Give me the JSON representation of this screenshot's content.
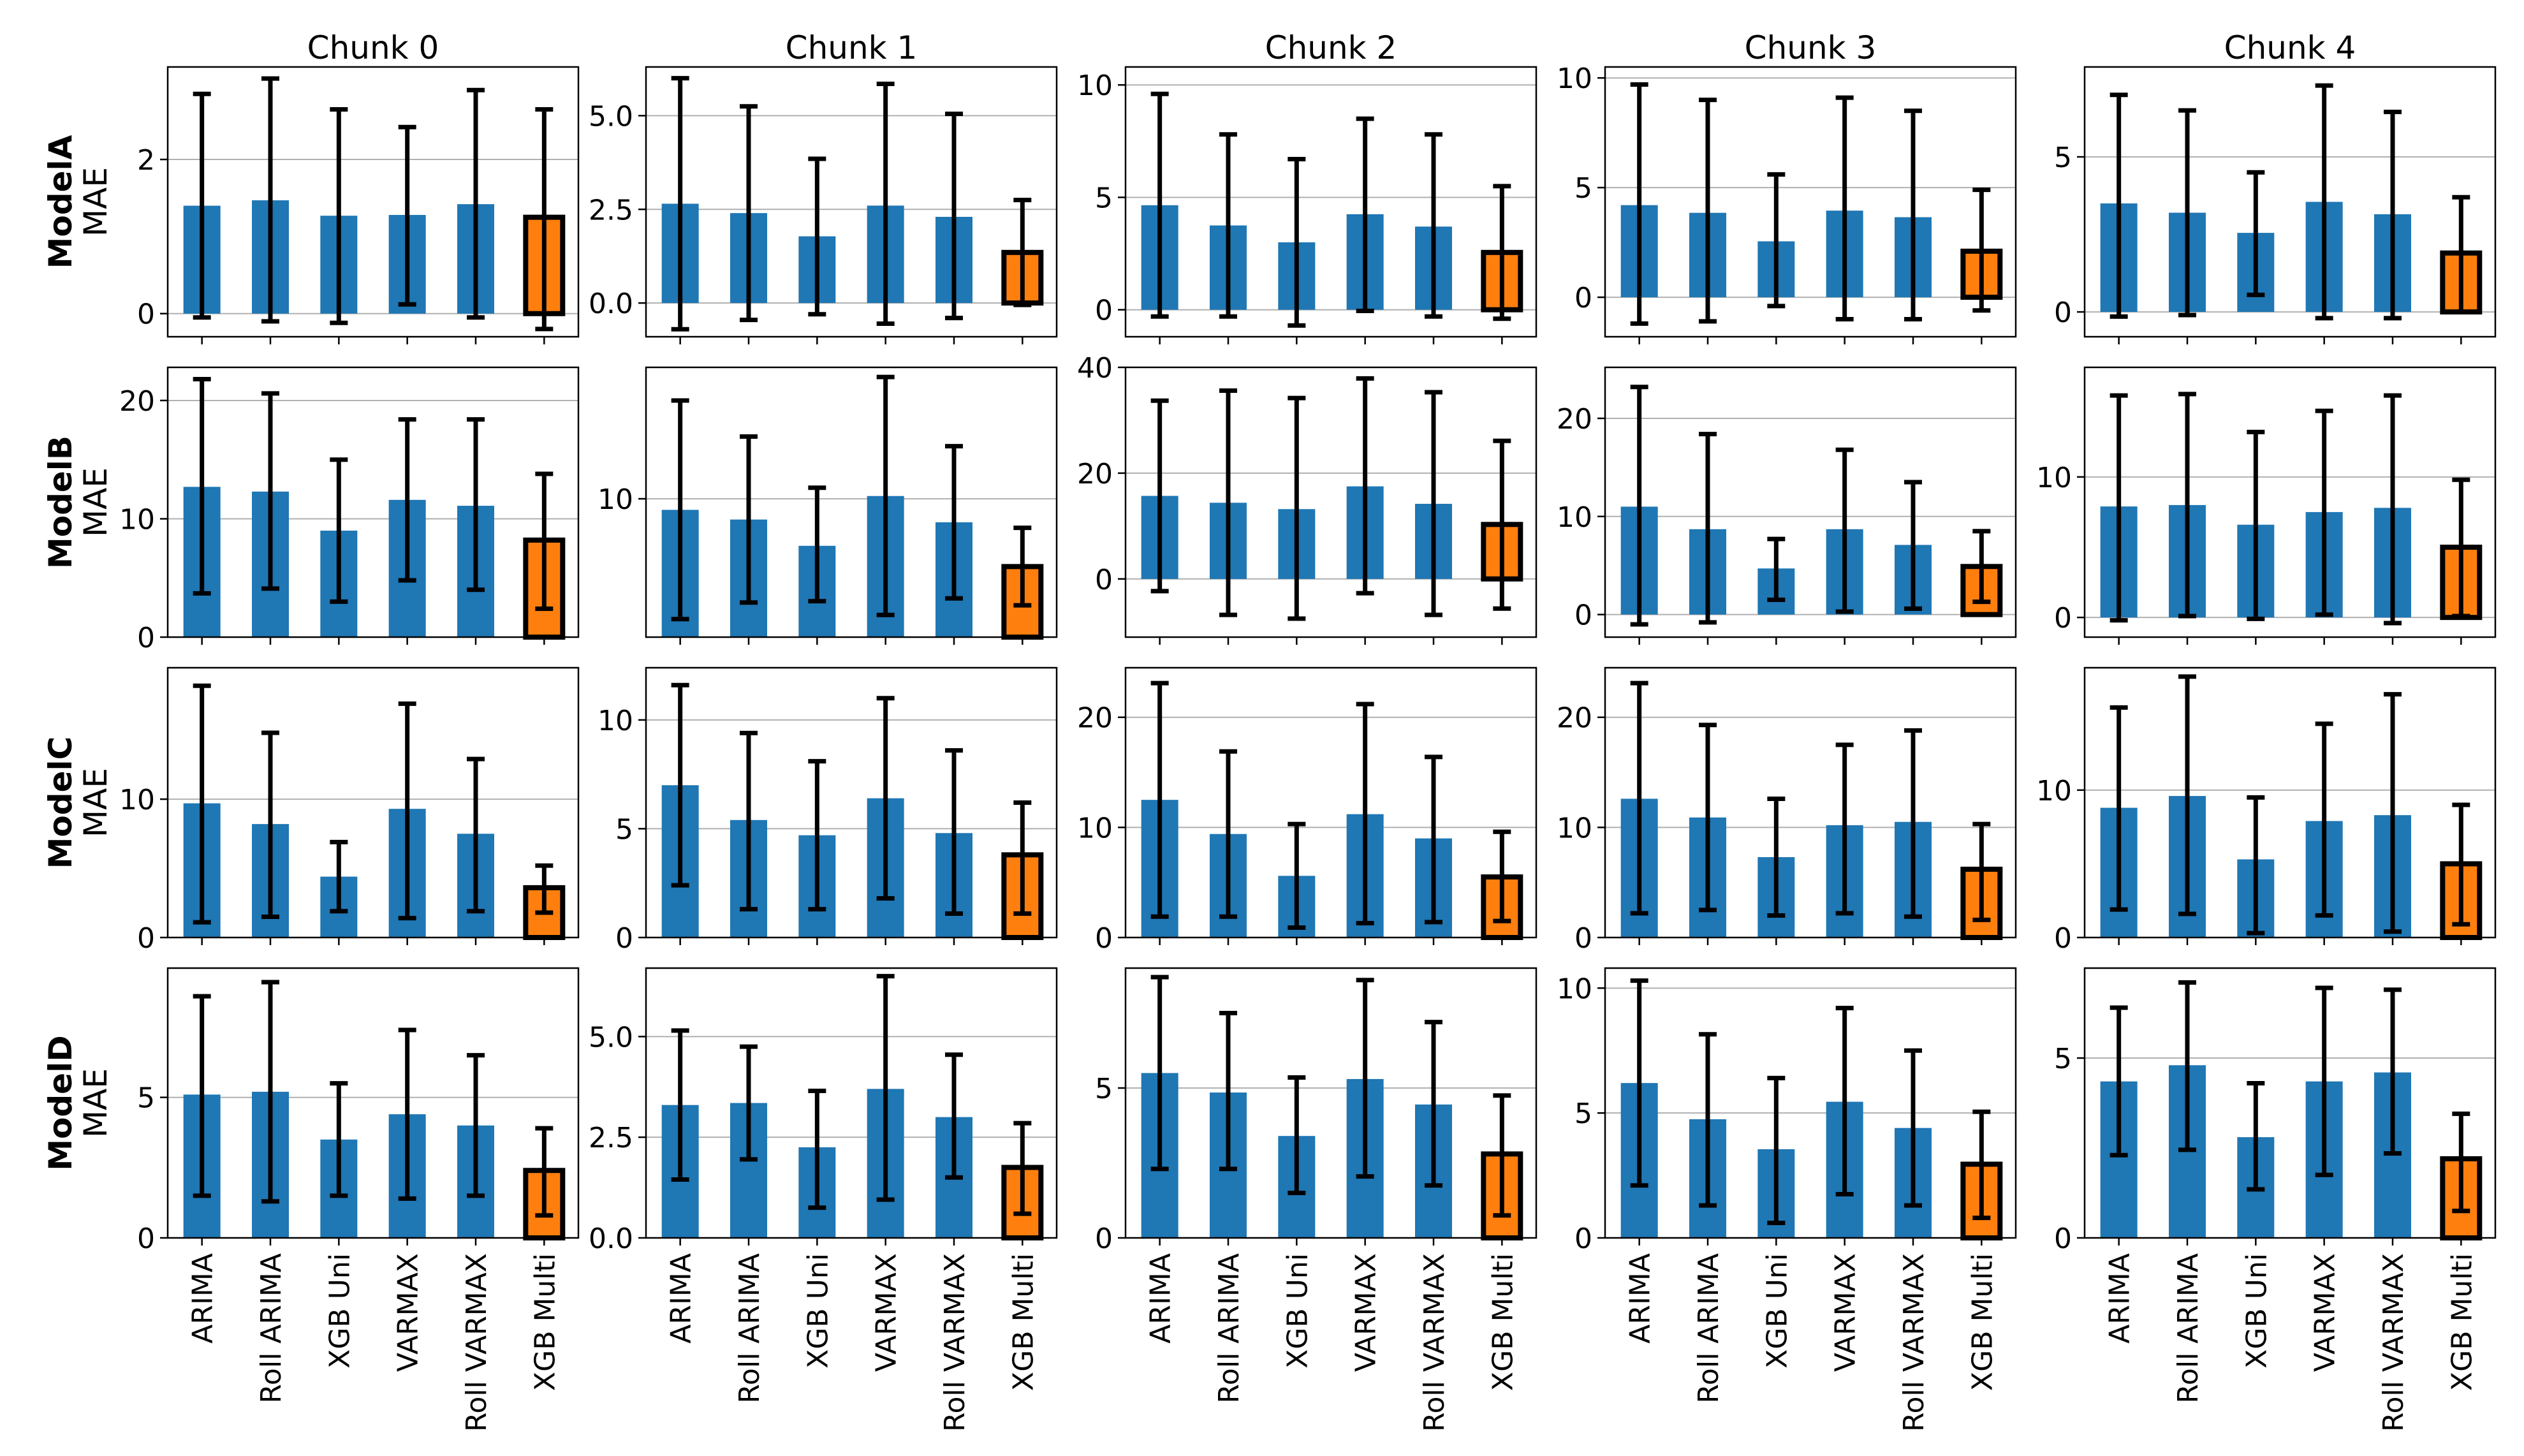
{
  "figure": {
    "columns": [
      "Chunk 0",
      "Chunk 1",
      "Chunk 2",
      "Chunk 3",
      "Chunk 4"
    ],
    "rows": [
      {
        "model": "ModelA",
        "metric": "MAE"
      },
      {
        "model": "ModelB",
        "metric": "MAE"
      },
      {
        "model": "ModelC",
        "metric": "MAE"
      },
      {
        "model": "ModelD",
        "metric": "MAE"
      }
    ]
  },
  "colors": {
    "base": "#1f77b4",
    "highlight": "#ff7f0e",
    "error": "#000000",
    "grid": "#b0b0b0"
  },
  "chart_data": {
    "type": "bar",
    "categories": [
      "ARIMA",
      "Roll ARIMA",
      "XGB Uni",
      "VARMAX",
      "Roll VARMAX",
      "XGB Multi"
    ],
    "highlight_category": "XGB Multi",
    "error_bars": "value = mean, err = [low, high]",
    "grid": "horizontal",
    "panels": [
      {
        "row": "ModelA",
        "column": "Chunk 0",
        "ylim": [
          -0.3,
          3.2
        ],
        "yticks": [
          0,
          2
        ],
        "ytick_labels": [
          "0",
          "2"
        ],
        "values": [
          1.4,
          1.47,
          1.27,
          1.28,
          1.42,
          1.25
        ],
        "err": [
          [
            -0.05,
            2.85
          ],
          [
            -0.1,
            3.05
          ],
          [
            -0.12,
            2.65
          ],
          [
            0.12,
            2.42
          ],
          [
            -0.05,
            2.9
          ],
          [
            -0.2,
            2.65
          ]
        ]
      },
      {
        "row": "ModelA",
        "column": "Chunk 1",
        "ylim": [
          -0.9,
          6.3
        ],
        "yticks": [
          0,
          2.5,
          5
        ],
        "ytick_labels": [
          "0.0",
          "2.5",
          "5.0"
        ],
        "values": [
          2.65,
          2.4,
          1.78,
          2.6,
          2.3,
          1.35
        ],
        "err": [
          [
            -0.7,
            6.0
          ],
          [
            -0.45,
            5.25
          ],
          [
            -0.3,
            3.85
          ],
          [
            -0.55,
            5.85
          ],
          [
            -0.4,
            5.05
          ],
          [
            -0.05,
            2.75
          ]
        ]
      },
      {
        "row": "ModelA",
        "column": "Chunk 2",
        "ylim": [
          -1.2,
          10.8
        ],
        "yticks": [
          0,
          5,
          10
        ],
        "ytick_labels": [
          "0",
          "5",
          "10"
        ],
        "values": [
          4.65,
          3.75,
          3.0,
          4.25,
          3.7,
          2.55
        ],
        "err": [
          [
            -0.3,
            9.6
          ],
          [
            -0.3,
            7.8
          ],
          [
            -0.7,
            6.7
          ],
          [
            -0.05,
            8.5
          ],
          [
            -0.3,
            7.8
          ],
          [
            -0.4,
            5.5
          ]
        ]
      },
      {
        "row": "ModelA",
        "column": "Chunk 3",
        "ylim": [
          -1.8,
          10.5
        ],
        "yticks": [
          0,
          5,
          10
        ],
        "ytick_labels": [
          "0",
          "5",
          "10"
        ],
        "values": [
          4.2,
          3.85,
          2.55,
          3.95,
          3.65,
          2.1
        ],
        "err": [
          [
            -1.2,
            9.7
          ],
          [
            -1.1,
            9.0
          ],
          [
            -0.4,
            5.6
          ],
          [
            -1.0,
            9.1
          ],
          [
            -1.0,
            8.5
          ],
          [
            -0.6,
            4.9
          ]
        ]
      },
      {
        "row": "ModelA",
        "column": "Chunk 4",
        "ylim": [
          -0.8,
          7.9
        ],
        "yticks": [
          0,
          5
        ],
        "ytick_labels": [
          "0",
          "5"
        ],
        "values": [
          3.5,
          3.2,
          2.55,
          3.55,
          3.15,
          1.9
        ],
        "err": [
          [
            -0.15,
            7.0
          ],
          [
            -0.1,
            6.5
          ],
          [
            0.55,
            4.5
          ],
          [
            -0.2,
            7.3
          ],
          [
            -0.2,
            6.45
          ],
          [
            0.0,
            3.7
          ]
        ]
      },
      {
        "row": "ModelB",
        "column": "Chunk 0",
        "ylim": [
          0,
          22.8
        ],
        "yticks": [
          0,
          10,
          20
        ],
        "ytick_labels": [
          "0",
          "10",
          "20"
        ],
        "values": [
          12.7,
          12.3,
          9.0,
          11.6,
          11.1,
          8.2
        ],
        "err": [
          [
            3.7,
            21.8
          ],
          [
            4.1,
            20.6
          ],
          [
            3.0,
            15.0
          ],
          [
            4.8,
            18.4
          ],
          [
            4.0,
            18.4
          ],
          [
            2.4,
            13.8
          ]
        ]
      },
      {
        "row": "ModelB",
        "column": "Chunk 1",
        "ylim": [
          0,
          19.5
        ],
        "yticks": [
          10
        ],
        "ytick_labels": [
          "10"
        ],
        "values": [
          9.2,
          8.5,
          6.6,
          10.2,
          8.3,
          5.1
        ],
        "err": [
          [
            1.3,
            17.1
          ],
          [
            2.5,
            14.5
          ],
          [
            2.6,
            10.8
          ],
          [
            1.6,
            18.8
          ],
          [
            2.8,
            13.8
          ],
          [
            2.3,
            7.9
          ]
        ]
      },
      {
        "row": "ModelB",
        "column": "Chunk 2",
        "ylim": [
          -11,
          40
        ],
        "yticks": [
          0,
          20,
          40
        ],
        "ytick_labels": [
          "0",
          "20",
          "40"
        ],
        "values": [
          15.7,
          14.4,
          13.2,
          17.5,
          14.2,
          10.3
        ],
        "err": [
          [
            -2.3,
            33.7
          ],
          [
            -6.8,
            35.6
          ],
          [
            -7.5,
            34.2
          ],
          [
            -2.7,
            37.9
          ],
          [
            -6.8,
            35.3
          ],
          [
            -5.6,
            26.1
          ]
        ]
      },
      {
        "row": "ModelB",
        "column": "Chunk 3",
        "ylim": [
          -2.3,
          25.2
        ],
        "yticks": [
          0,
          10,
          20
        ],
        "ytick_labels": [
          "0",
          "10",
          "20"
        ],
        "values": [
          11.0,
          8.7,
          4.7,
          8.7,
          7.1,
          4.9
        ],
        "err": [
          [
            -1.0,
            23.2
          ],
          [
            -0.8,
            18.4
          ],
          [
            1.5,
            7.7
          ],
          [
            0.3,
            16.8
          ],
          [
            0.6,
            13.5
          ],
          [
            1.3,
            8.5
          ]
        ]
      },
      {
        "row": "ModelB",
        "column": "Chunk 4",
        "ylim": [
          -1.4,
          17.8
        ],
        "yticks": [
          0,
          10
        ],
        "ytick_labels": [
          "0",
          "10"
        ],
        "values": [
          7.9,
          8.0,
          6.6,
          7.5,
          7.8,
          5.0
        ],
        "err": [
          [
            -0.2,
            15.8
          ],
          [
            0.1,
            15.9
          ],
          [
            -0.1,
            13.2
          ],
          [
            0.2,
            14.7
          ],
          [
            -0.4,
            15.8
          ],
          [
            0.1,
            9.8
          ]
        ]
      },
      {
        "row": "ModelC",
        "column": "Chunk 0",
        "ylim": [
          0,
          19.5
        ],
        "yticks": [
          0,
          10
        ],
        "ytick_labels": [
          "0",
          "10"
        ],
        "values": [
          9.7,
          8.2,
          4.4,
          9.3,
          7.5,
          3.6
        ],
        "err": [
          [
            1.1,
            18.2
          ],
          [
            1.5,
            14.8
          ],
          [
            1.9,
            6.9
          ],
          [
            1.4,
            16.9
          ],
          [
            1.9,
            12.9
          ],
          [
            1.8,
            5.2
          ]
        ]
      },
      {
        "row": "ModelC",
        "column": "Chunk 1",
        "ylim": [
          0,
          12.4
        ],
        "yticks": [
          0,
          5,
          10
        ],
        "ytick_labels": [
          "0",
          "5",
          "10"
        ],
        "values": [
          7.0,
          5.4,
          4.7,
          6.4,
          4.8,
          3.8
        ],
        "err": [
          [
            2.4,
            11.6
          ],
          [
            1.3,
            9.4
          ],
          [
            1.3,
            8.1
          ],
          [
            1.8,
            11.0
          ],
          [
            1.1,
            8.6
          ],
          [
            1.1,
            6.2
          ]
        ]
      },
      {
        "row": "ModelC",
        "column": "Chunk 2",
        "ylim": [
          0,
          24.5
        ],
        "yticks": [
          0,
          10,
          20
        ],
        "ytick_labels": [
          "0",
          "10",
          "20"
        ],
        "values": [
          12.5,
          9.4,
          5.6,
          11.2,
          9.0,
          5.5
        ],
        "err": [
          [
            1.9,
            23.1
          ],
          [
            1.9,
            16.9
          ],
          [
            0.9,
            10.3
          ],
          [
            1.3,
            21.2
          ],
          [
            1.4,
            16.4
          ],
          [
            1.5,
            9.6
          ]
        ]
      },
      {
        "row": "ModelC",
        "column": "Chunk 3",
        "ylim": [
          0,
          24.5
        ],
        "yticks": [
          0,
          10,
          20
        ],
        "ytick_labels": [
          "0",
          "10",
          "20"
        ],
        "values": [
          12.6,
          10.9,
          7.3,
          10.2,
          10.5,
          6.2
        ],
        "err": [
          [
            2.2,
            23.1
          ],
          [
            2.5,
            19.3
          ],
          [
            2.0,
            12.6
          ],
          [
            2.2,
            17.5
          ],
          [
            1.9,
            18.8
          ],
          [
            1.6,
            10.3
          ]
        ]
      },
      {
        "row": "ModelC",
        "column": "Chunk 4",
        "ylim": [
          0,
          18.3
        ],
        "yticks": [
          0,
          10
        ],
        "ytick_labels": [
          "0",
          "10"
        ],
        "values": [
          8.8,
          9.6,
          5.3,
          7.9,
          8.3,
          5.0
        ],
        "err": [
          [
            1.9,
            15.6
          ],
          [
            1.6,
            17.7
          ],
          [
            0.3,
            9.5
          ],
          [
            1.5,
            14.5
          ],
          [
            0.4,
            16.5
          ],
          [
            0.9,
            9.0
          ]
        ]
      },
      {
        "row": "ModelD",
        "column": "Chunk 0",
        "ylim": [
          0,
          9.6
        ],
        "yticks": [
          0,
          5
        ],
        "ytick_labels": [
          "0",
          "5"
        ],
        "values": [
          5.1,
          5.2,
          3.5,
          4.4,
          4.0,
          2.4
        ],
        "err": [
          [
            1.5,
            8.6
          ],
          [
            1.3,
            9.1
          ],
          [
            1.5,
            5.5
          ],
          [
            1.4,
            7.4
          ],
          [
            1.5,
            6.5
          ],
          [
            0.8,
            3.9
          ]
        ]
      },
      {
        "row": "ModelD",
        "column": "Chunk 1",
        "ylim": [
          0,
          6.7
        ],
        "yticks": [
          0,
          2.5,
          5
        ],
        "ytick_labels": [
          "0.0",
          "2.5",
          "5.0"
        ],
        "values": [
          3.3,
          3.35,
          2.25,
          3.7,
          3.0,
          1.75
        ],
        "err": [
          [
            1.45,
            5.15
          ],
          [
            1.95,
            4.75
          ],
          [
            0.75,
            3.65
          ],
          [
            0.95,
            6.5
          ],
          [
            1.5,
            4.55
          ],
          [
            0.6,
            2.85
          ]
        ]
      },
      {
        "row": "ModelD",
        "column": "Chunk 2",
        "ylim": [
          0,
          9.0
        ],
        "yticks": [
          0,
          5
        ],
        "ytick_labels": [
          "0",
          "5"
        ],
        "values": [
          5.5,
          4.85,
          3.4,
          5.3,
          4.45,
          2.8
        ],
        "err": [
          [
            2.3,
            8.7
          ],
          [
            2.3,
            7.5
          ],
          [
            1.5,
            5.35
          ],
          [
            2.05,
            8.6
          ],
          [
            1.75,
            7.2
          ],
          [
            0.75,
            4.75
          ]
        ]
      },
      {
        "row": "ModelD",
        "column": "Chunk 3",
        "ylim": [
          0,
          10.8
        ],
        "yticks": [
          0,
          5,
          10
        ],
        "ytick_labels": [
          "0",
          "5",
          "10"
        ],
        "values": [
          6.2,
          4.75,
          3.55,
          5.45,
          4.4,
          2.95
        ],
        "err": [
          [
            2.1,
            10.3
          ],
          [
            1.3,
            8.15
          ],
          [
            0.6,
            6.4
          ],
          [
            1.75,
            9.2
          ],
          [
            1.3,
            7.5
          ],
          [
            0.8,
            5.05
          ]
        ]
      },
      {
        "row": "ModelD",
        "column": "Chunk 4",
        "ylim": [
          0,
          7.5
        ],
        "yticks": [
          0,
          5
        ],
        "ytick_labels": [
          "0",
          "5"
        ],
        "values": [
          4.35,
          4.8,
          2.8,
          4.35,
          4.6,
          2.2
        ],
        "err": [
          [
            2.3,
            6.4
          ],
          [
            2.45,
            7.1
          ],
          [
            1.35,
            4.3
          ],
          [
            1.75,
            6.95
          ],
          [
            2.35,
            6.9
          ],
          [
            0.75,
            3.45
          ]
        ]
      }
    ]
  }
}
